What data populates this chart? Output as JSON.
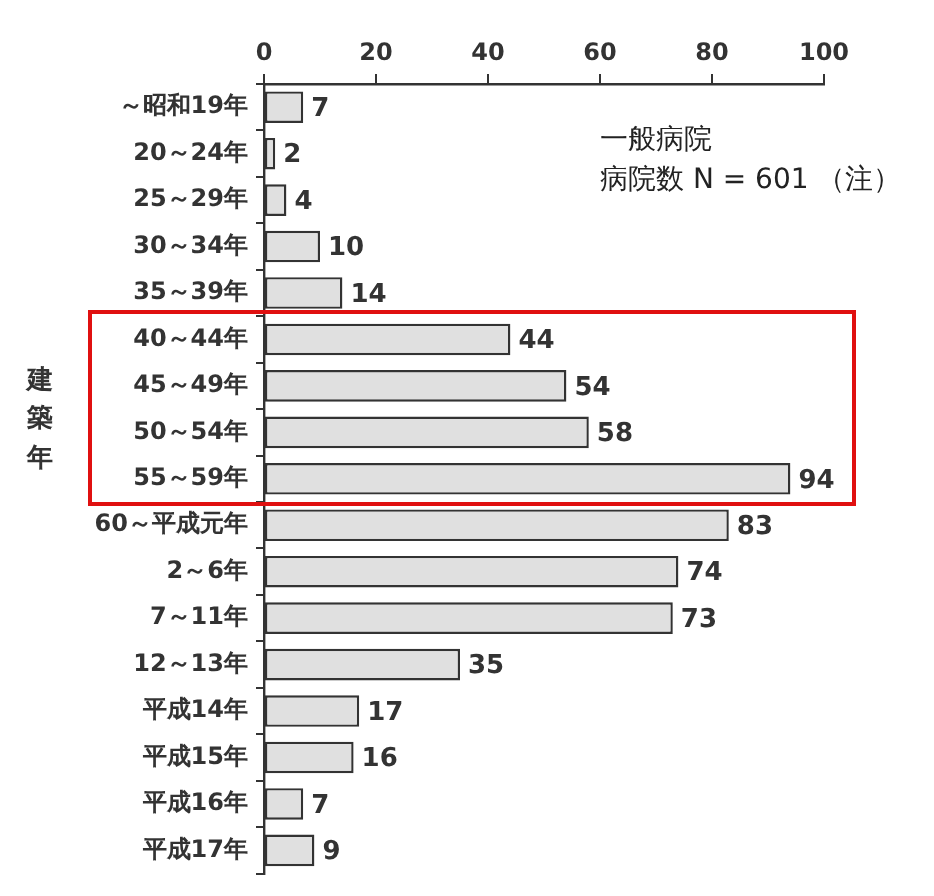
{
  "chart_data": {
    "type": "bar",
    "orientation": "horizontal",
    "ylabel": "建築年",
    "annotations": [
      "一般病院",
      "病院数 N = 601 （注）"
    ],
    "categories": [
      "～昭和19年",
      "20～24年",
      "25～29年",
      "30～34年",
      "35～39年",
      "40～44年",
      "45～49年",
      "50～54年",
      "55～59年",
      "60～平成元年",
      "2～6年",
      "7～11年",
      "12～13年",
      "平成14年",
      "平成15年",
      "平成16年",
      "平成17年"
    ],
    "values": [
      7,
      2,
      4,
      10,
      14,
      44,
      54,
      58,
      94,
      83,
      74,
      73,
      35,
      17,
      16,
      7,
      9
    ],
    "color": "#e0e0e0",
    "xlim": [
      0,
      100
    ],
    "xticks": [
      0,
      20,
      40,
      60,
      80,
      100
    ],
    "data_labels": true,
    "grid": false,
    "legend": false
  }
}
